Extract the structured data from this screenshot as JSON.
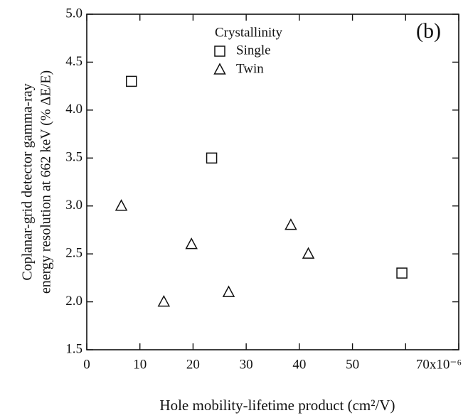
{
  "chart_data": {
    "type": "scatter",
    "xlabel": "Hole mobility-lifetime product (cm²/V)",
    "ylabel": [
      "Coplanar-grid detector gamma-ray",
      "energy resolution at 662 keV (% ΔE/E)"
    ],
    "annotation": "(b)",
    "legend_title": "Crystallinity",
    "xlim": [
      0,
      70
    ],
    "xticks": [
      0,
      10,
      20,
      30,
      40,
      50,
      {
        "value": 60,
        "label": null
      },
      {
        "value": 70,
        "label": "70x10⁻⁶"
      }
    ],
    "ylim": [
      1.5,
      5.0
    ],
    "yticks": [
      {
        "value": 1.5,
        "label": "1.5"
      },
      {
        "value": 2.0,
        "label": "2.0"
      },
      {
        "value": 2.5,
        "label": "2.5"
      },
      {
        "value": 3.0,
        "label": "3.0"
      },
      {
        "value": 3.5,
        "label": "3.5"
      },
      {
        "value": 4.0,
        "label": "4.0"
      },
      {
        "value": 4.5,
        "label": "4.5"
      },
      {
        "value": 5.0,
        "label": "5.0"
      }
    ],
    "series": [
      {
        "name": "Single",
        "marker": "square",
        "color": "#111111",
        "x": [
          8.4,
          23.5,
          59.3
        ],
        "values": [
          4.3,
          3.5,
          2.3
        ]
      },
      {
        "name": "Twin",
        "marker": "triangle",
        "color": "#111111",
        "x": [
          6.5,
          14.5,
          19.7,
          26.7,
          38.4,
          41.7
        ],
        "values": [
          3.0,
          2.0,
          2.6,
          2.1,
          2.8,
          2.5
        ]
      }
    ]
  }
}
